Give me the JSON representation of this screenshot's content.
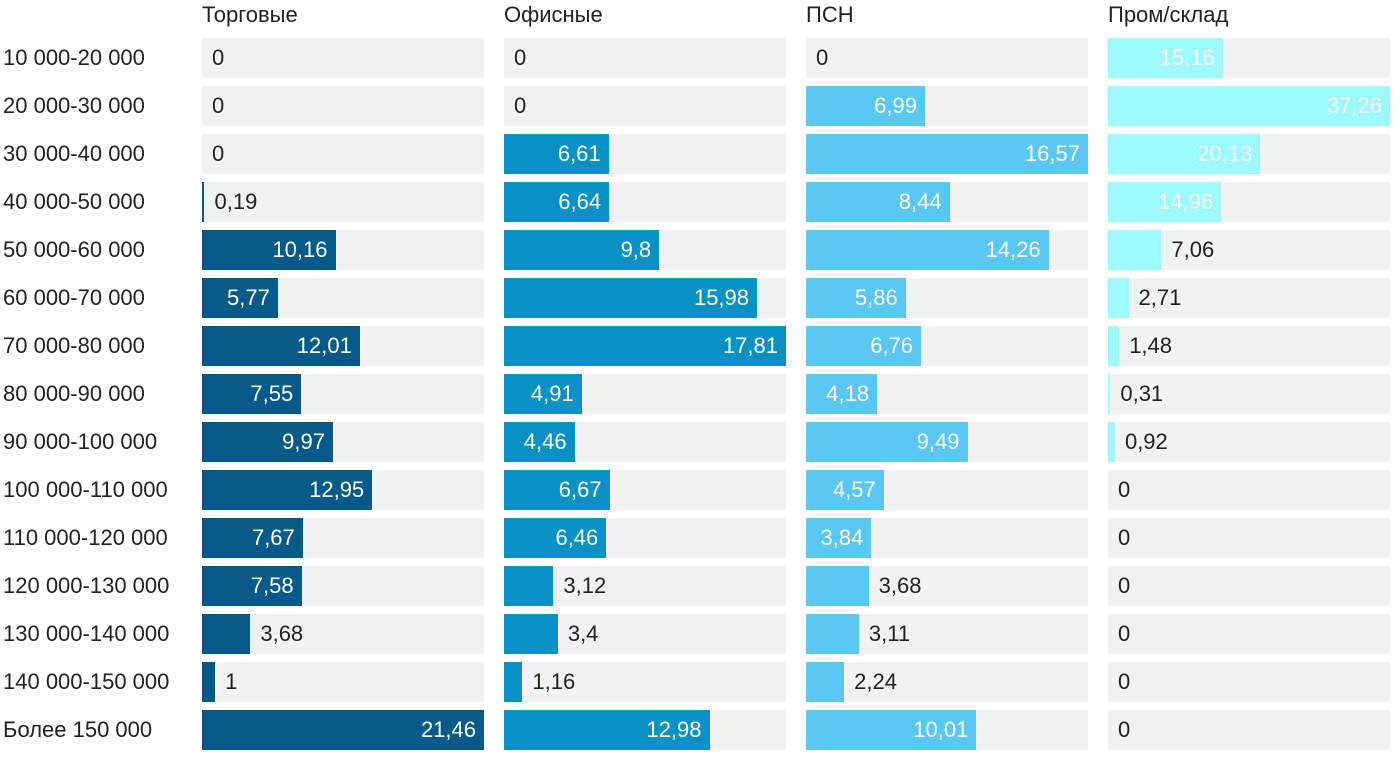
{
  "chart_data": {
    "type": "bar",
    "orientation": "horizontal",
    "layout": "small-multiples",
    "categories": [
      "10 000-20 000",
      "20 000-30 000",
      "30 000-40 000",
      "40 000-50 000",
      "50 000-60 000",
      "60 000-70 000",
      "70 000-80 000",
      "80 000-90 000",
      "90 000-100 000",
      "100 000-110 000",
      "110 000-120 000",
      "120 000-130 000",
      "130 000-140 000",
      "140 000-150 000",
      "Более 150 000"
    ],
    "series": [
      {
        "name": "Торговые",
        "color": "#055a8a",
        "values": [
          0,
          0,
          0,
          0.19,
          10.16,
          5.77,
          12.01,
          7.55,
          9.97,
          12.95,
          7.67,
          7.58,
          3.68,
          1,
          21.46
        ],
        "labels": [
          "0",
          "0",
          "0",
          "0,19",
          "10,16",
          "5,77",
          "12,01",
          "7,55",
          "9,97",
          "12,95",
          "7,67",
          "7,58",
          "3,68",
          "1",
          "21,46"
        ]
      },
      {
        "name": "Офисные",
        "color": "#0892c3",
        "values": [
          0,
          0,
          6.61,
          6.64,
          9.8,
          15.98,
          17.81,
          4.91,
          4.46,
          6.67,
          6.46,
          3.12,
          3.4,
          1.16,
          12.98
        ],
        "labels": [
          "0",
          "0",
          "6,61",
          "6,64",
          "9,8",
          "15,98",
          "17,81",
          "4,91",
          "4,46",
          "6,67",
          "6,46",
          "3,12",
          "3,4",
          "1,16",
          "12,98"
        ]
      },
      {
        "name": "ПСН",
        "color": "#5ac6f2",
        "values": [
          0,
          6.99,
          16.57,
          8.44,
          14.26,
          5.86,
          6.76,
          4.18,
          9.49,
          4.57,
          3.84,
          3.68,
          3.11,
          2.24,
          10.01
        ],
        "labels": [
          "0",
          "6,99",
          "16,57",
          "8,44",
          "14,26",
          "5,86",
          "6,76",
          "4,18",
          "9,49",
          "4,57",
          "3,84",
          "3,68",
          "3,11",
          "2,24",
          "10,01"
        ]
      },
      {
        "name": "Пром/склад",
        "color": "#9cfafd",
        "values": [
          15.16,
          37.26,
          20.13,
          14.96,
          7.06,
          2.71,
          1.48,
          0.31,
          0.92,
          0,
          0,
          0,
          0,
          0,
          0
        ],
        "labels": [
          "15,16",
          "37,26",
          "20,13",
          "14,96",
          "7,06",
          "2,71",
          "1,48",
          "0,31",
          "0,92",
          "0",
          "0",
          "0",
          "0",
          "0",
          "0"
        ]
      }
    ],
    "track_color": "#f2f2f2",
    "inside_label_color": "#ffffff",
    "outside_label_color": "#222222",
    "grid": false,
    "legend": "none"
  }
}
